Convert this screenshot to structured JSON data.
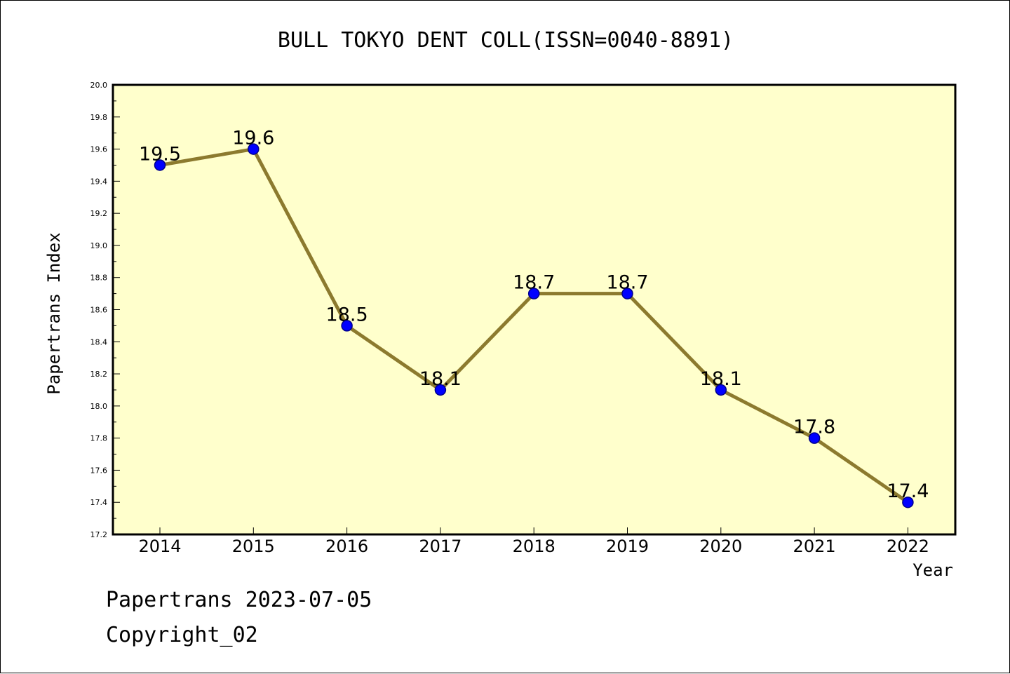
{
  "chart_data": {
    "type": "line",
    "title": "BULL TOKYO DENT COLL(ISSN=0040-8891)",
    "xlabel": "Year",
    "ylabel": "Papertrans Index",
    "categories": [
      "2014",
      "2015",
      "2016",
      "2017",
      "2018",
      "2019",
      "2020",
      "2021",
      "2022"
    ],
    "series": [
      {
        "values": [
          19.5,
          19.6,
          18.5,
          18.1,
          18.7,
          18.7,
          18.1,
          17.8,
          17.4
        ]
      }
    ],
    "data_labels": [
      "19.5",
      "19.6",
      "18.5",
      "18.1",
      "18.7",
      "18.7",
      "18.1",
      "17.8",
      "17.4"
    ],
    "ylim": [
      17.2,
      20.0
    ],
    "yticks": [
      "17.2",
      "17.4",
      "17.6",
      "17.8",
      "18.0",
      "18.2",
      "18.4",
      "18.6",
      "18.8",
      "19.0",
      "19.2",
      "19.4",
      "19.6",
      "19.8",
      "20.0"
    ],
    "grid": false,
    "legend": "none",
    "colors": {
      "plot_background": "#ffffcc",
      "line": "#8c7a2e",
      "marker_fill": "#0000ff",
      "marker_stroke": "#00008b"
    }
  },
  "footer": {
    "date_line": "Papertrans 2023-07-05",
    "copyright": "Copyright_02"
  }
}
